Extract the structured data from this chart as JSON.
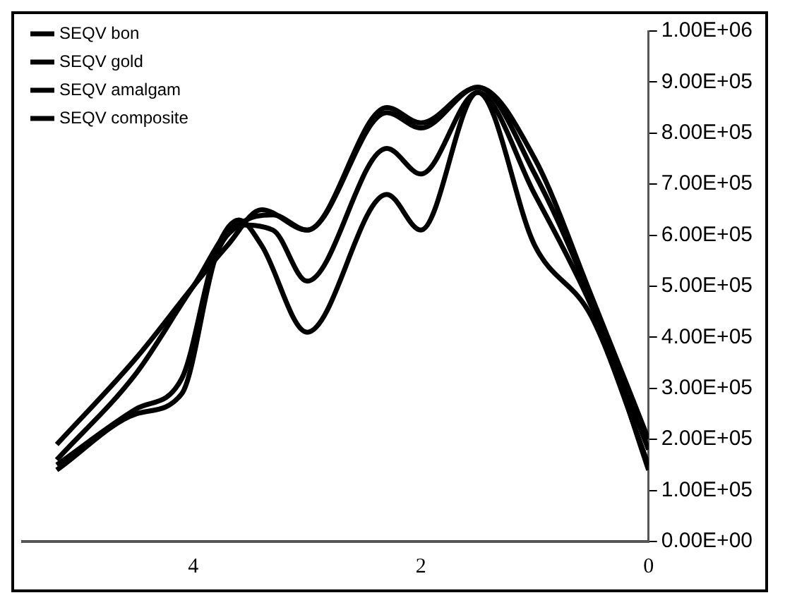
{
  "chart_data": {
    "type": "line",
    "series": [
      {
        "name": "SEQV bon",
        "color": "#000000",
        "x": [
          5.2,
          4.5,
          4.0,
          3.7,
          3.4,
          3.0,
          2.3,
          2.0,
          1.5,
          1.0,
          0.5,
          0.0
        ],
        "values": [
          190000,
          360000,
          500000,
          580000,
          650000,
          610000,
          850000,
          820000,
          890000,
          750000,
          480000,
          200000
        ]
      },
      {
        "name": "SEQV gold",
        "color": "#000000",
        "x": [
          5.2,
          4.5,
          4.0,
          3.6,
          3.3,
          3.0,
          2.3,
          2.0,
          1.5,
          1.0,
          0.5,
          0.0
        ],
        "values": [
          160000,
          330000,
          500000,
          620000,
          610000,
          510000,
          770000,
          720000,
          880000,
          680000,
          460000,
          180000
        ]
      },
      {
        "name": "SEQV amalgam",
        "color": "#000000",
        "x": [
          5.2,
          4.5,
          4.1,
          3.8,
          3.6,
          3.4,
          3.0,
          2.3,
          2.0,
          1.5,
          1.0,
          0.5,
          0.0
        ],
        "values": [
          150000,
          260000,
          320000,
          570000,
          630000,
          580000,
          410000,
          680000,
          610000,
          880000,
          580000,
          440000,
          150000
        ]
      },
      {
        "name": "SEQV composite",
        "color": "#000000",
        "x": [
          5.2,
          4.5,
          4.1,
          3.8,
          3.6,
          3.3,
          3.0,
          2.3,
          2.0,
          1.5,
          1.0,
          0.5,
          0.0
        ],
        "values": [
          140000,
          250000,
          290000,
          560000,
          620000,
          640000,
          610000,
          840000,
          810000,
          890000,
          720000,
          470000,
          140000
        ]
      }
    ],
    "xlim": [
      5.5,
      0
    ],
    "xticks": [
      4,
      2,
      0
    ],
    "ylim": [
      0,
      1000000
    ],
    "yticks": [
      {
        "value": 0,
        "label": "0.00E+00"
      },
      {
        "value": 100000,
        "label": "1.00E+05"
      },
      {
        "value": 200000,
        "label": "2.00E+05"
      },
      {
        "value": 300000,
        "label": "3.00E+05"
      },
      {
        "value": 400000,
        "label": "4.00E+05"
      },
      {
        "value": 500000,
        "label": "5.00E+05"
      },
      {
        "value": 600000,
        "label": "6.00E+05"
      },
      {
        "value": 700000,
        "label": "7.00E+05"
      },
      {
        "value": 800000,
        "label": "8.00E+05"
      },
      {
        "value": 900000,
        "label": "9.00E+05"
      },
      {
        "value": 1000000,
        "label": "1.00E+06"
      }
    ],
    "legend": "top left",
    "grid": false,
    "marker": "none",
    "line_style": "solid"
  }
}
